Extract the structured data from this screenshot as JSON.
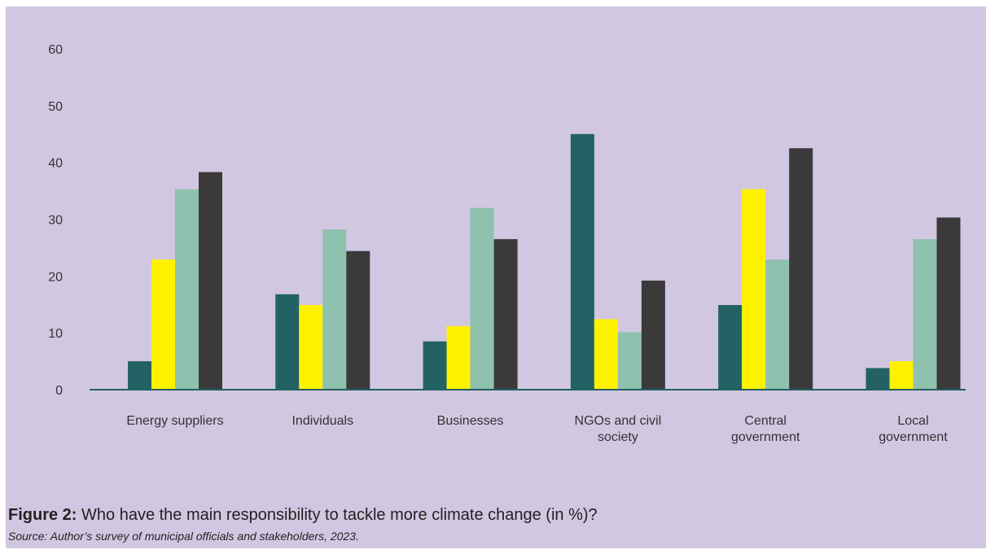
{
  "figure": {
    "prefix": "Figure 2:",
    "title": "Who have the main responsibility to tackle more climate change (in %)?",
    "source": "Source: Author’s survey of municipal officials and stakeholders, 2023."
  },
  "colors": {
    "background": "#d2c7e1",
    "axis": "#22605f",
    "series": [
      "#236264",
      "#fef200",
      "#8fc1af",
      "#3a3a3a"
    ]
  },
  "chart_data": {
    "type": "bar",
    "categories": [
      [
        "Energy suppliers"
      ],
      [
        "Individuals"
      ],
      [
        "Businesses"
      ],
      [
        "NGOs and civil",
        "society"
      ],
      [
        "Central",
        "government"
      ],
      [
        "Local",
        "government"
      ]
    ],
    "series": [
      {
        "values": [
          5,
          16.8,
          8.5,
          45,
          14.9,
          3.8
        ]
      },
      {
        "values": [
          22.9,
          14.9,
          11.2,
          12.4,
          35.3,
          5
        ]
      },
      {
        "values": [
          35.3,
          28.2,
          32,
          10.1,
          22.9,
          26.5
        ]
      },
      {
        "values": [
          38.3,
          24.4,
          26.5,
          19.2,
          42.5,
          30.3
        ]
      }
    ],
    "ylim": [
      0,
      60
    ],
    "yticks": [
      0,
      10,
      20,
      30,
      40,
      50,
      60
    ],
    "grid": false,
    "legend": "none",
    "xlabel": "",
    "ylabel": ""
  }
}
